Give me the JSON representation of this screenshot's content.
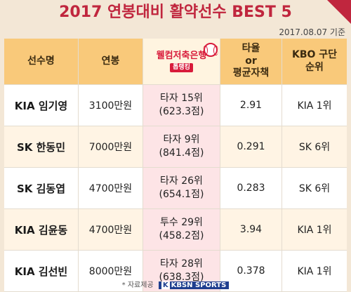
{
  "title": "2017 연봉대비 활약선수 BEST 5",
  "date": "2017.08.07 기준",
  "headers": {
    "player": "선수명",
    "salary": "연봉",
    "bank_name": "웰컴저축은행",
    "bank_sub": "톱랭킹",
    "stat_line1": "타율",
    "stat_line2": "or",
    "stat_line3": "평균자책",
    "rank_line1": "KBO 구단",
    "rank_line2": "순위"
  },
  "rows": [
    {
      "player": "KIA 임기영",
      "salary": "3100만원",
      "rank_line1": "타자 15위",
      "rank_line2": "(623.3점)",
      "stat": "2.91",
      "team_rank": "KIA 1위"
    },
    {
      "player": "SK 한동민",
      "salary": "7000만원",
      "rank_line1": "타자 9위",
      "rank_line2": "(841.4점)",
      "stat": "0.291",
      "team_rank": "SK 6위"
    },
    {
      "player": "SK 김동엽",
      "salary": "4700만원",
      "rank_line1": "타자 26위",
      "rank_line2": "(654.1점)",
      "stat": "0.283",
      "team_rank": "SK 6위"
    },
    {
      "player": "KIA 김윤동",
      "salary": "4700만원",
      "rank_line1": "투수 29위",
      "rank_line2": "(458.2점)",
      "stat": "3.94",
      "team_rank": "KIA 1위"
    },
    {
      "player": "KIA 김선빈",
      "salary": "8000만원",
      "rank_line1": "타자 28위",
      "rank_line2": "(638.3점)",
      "stat": "0.378",
      "team_rank": "KIA 1위"
    }
  ],
  "footer": {
    "source": "* 자료제공",
    "brand_k": "K",
    "brand": "KBSN SPORTS"
  },
  "colors": {
    "title": "#c0263e",
    "header_bg": "#f9c97a",
    "background": "#f3e7d6",
    "bank_red": "#d81b3b"
  }
}
